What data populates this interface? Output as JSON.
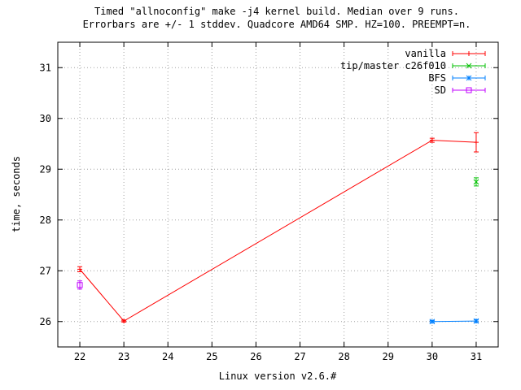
{
  "chart_data": {
    "type": "line",
    "title_lines": [
      "Timed \"allnoconfig\" make -j4 kernel build. Median over 9 runs.",
      "Errorbars are +/- 1 stddev. Quadcore AMD64 SMP. HZ=100. PREEMPT=n."
    ],
    "xlabel": "Linux version v2.6.#",
    "ylabel": "time, seconds",
    "xlim": [
      21.5,
      31.5
    ],
    "ylim": [
      25.5,
      31.5
    ],
    "xticks": [
      22,
      23,
      24,
      25,
      26,
      27,
      28,
      29,
      30,
      31
    ],
    "yticks": [
      26,
      27,
      28,
      29,
      30,
      31
    ],
    "grid": true,
    "legend_position": "top-right",
    "series": [
      {
        "name": "vanilla",
        "color": "#ff0000",
        "marker": "plus",
        "points": [
          {
            "x": 22,
            "y": 27.03,
            "err": 0.05
          },
          {
            "x": 23,
            "y": 26.01,
            "err": 0.02
          },
          {
            "x": 30,
            "y": 29.57,
            "err": 0.04
          },
          {
            "x": 31,
            "y": 29.53,
            "err": 0.19
          }
        ]
      },
      {
        "name": "tip/master c26f010",
        "color": "#00c000",
        "marker": "cross",
        "points": [
          {
            "x": 31,
            "y": 28.75,
            "err": 0.08
          }
        ]
      },
      {
        "name": "BFS",
        "color": "#0080ff",
        "marker": "star",
        "points": [
          {
            "x": 30,
            "y": 26.0,
            "err": 0.02
          },
          {
            "x": 31,
            "y": 26.01,
            "err": 0.03
          }
        ]
      },
      {
        "name": "SD",
        "color": "#c000ff",
        "marker": "box",
        "points": [
          {
            "x": 22,
            "y": 26.72,
            "err": 0.08
          }
        ]
      }
    ]
  }
}
